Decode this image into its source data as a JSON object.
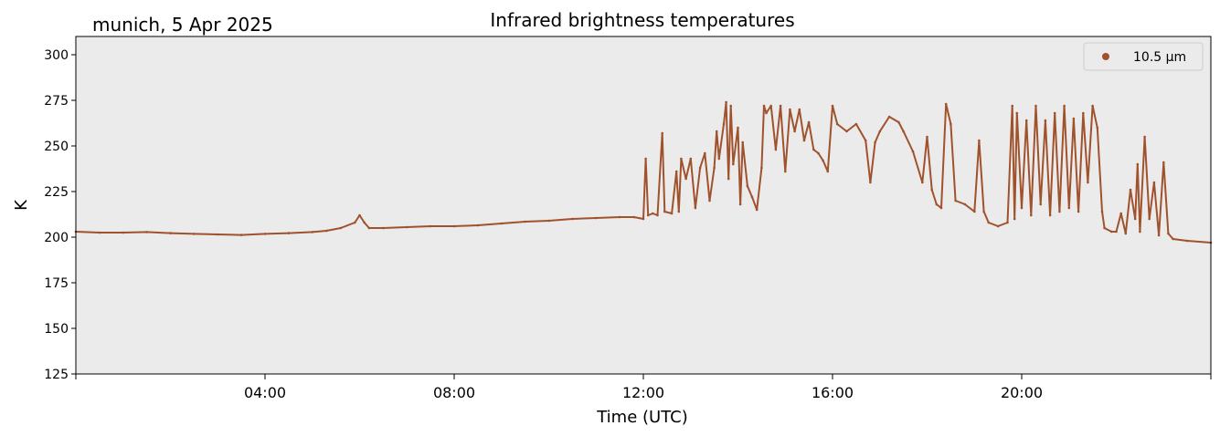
{
  "chart_data": {
    "type": "scatter",
    "title": "Infrared brightness temperatures",
    "location_label": "munich, 5 Apr 2025",
    "xlabel": "Time (UTC)",
    "ylabel": "K",
    "xlim": [
      0,
      24
    ],
    "ylim": [
      125,
      310
    ],
    "y_ticks": [
      125,
      150,
      175,
      200,
      225,
      250,
      275,
      300
    ],
    "x_ticks": [
      {
        "value": 4,
        "label": "04:00"
      },
      {
        "value": 8,
        "label": "08:00"
      },
      {
        "value": 12,
        "label": "12:00"
      },
      {
        "value": 16,
        "label": "16:00"
      },
      {
        "value": 20,
        "label": "20:00"
      }
    ],
    "grid": false,
    "legend_position": "top-right",
    "background_color": "#ebebeb",
    "series": [
      {
        "name": "10.5 µm",
        "color": "#a0522d",
        "points": [
          [
            0.0,
            203
          ],
          [
            0.5,
            202.5
          ],
          [
            1.0,
            202.5
          ],
          [
            1.5,
            202.8
          ],
          [
            2.0,
            202.2
          ],
          [
            2.5,
            201.8
          ],
          [
            3.0,
            201.5
          ],
          [
            3.5,
            201.2
          ],
          [
            4.0,
            201.8
          ],
          [
            4.5,
            202.2
          ],
          [
            5.0,
            202.8
          ],
          [
            5.3,
            203.5
          ],
          [
            5.6,
            205
          ],
          [
            5.9,
            208
          ],
          [
            6.0,
            212
          ],
          [
            6.1,
            208
          ],
          [
            6.2,
            205
          ],
          [
            6.5,
            205
          ],
          [
            7.0,
            205.5
          ],
          [
            7.5,
            206
          ],
          [
            8.0,
            206
          ],
          [
            8.5,
            206.5
          ],
          [
            9.0,
            207.5
          ],
          [
            9.5,
            208.5
          ],
          [
            10.0,
            209
          ],
          [
            10.5,
            210
          ],
          [
            11.0,
            210.5
          ],
          [
            11.5,
            211
          ],
          [
            11.8,
            211
          ],
          [
            12.0,
            210
          ],
          [
            12.05,
            243
          ],
          [
            12.1,
            212
          ],
          [
            12.2,
            213
          ],
          [
            12.3,
            212
          ],
          [
            12.4,
            257
          ],
          [
            12.45,
            214
          ],
          [
            12.6,
            213
          ],
          [
            12.7,
            236
          ],
          [
            12.75,
            214
          ],
          [
            12.8,
            243
          ],
          [
            12.9,
            232
          ],
          [
            13.0,
            243
          ],
          [
            13.1,
            216
          ],
          [
            13.2,
            238
          ],
          [
            13.3,
            246
          ],
          [
            13.4,
            220
          ],
          [
            13.5,
            238
          ],
          [
            13.55,
            258
          ],
          [
            13.6,
            243
          ],
          [
            13.7,
            262
          ],
          [
            13.75,
            274
          ],
          [
            13.8,
            232
          ],
          [
            13.85,
            272
          ],
          [
            13.9,
            240
          ],
          [
            14.0,
            260
          ],
          [
            14.05,
            218
          ],
          [
            14.1,
            252
          ],
          [
            14.2,
            228
          ],
          [
            14.3,
            222
          ],
          [
            14.4,
            215
          ],
          [
            14.5,
            238
          ],
          [
            14.55,
            272
          ],
          [
            14.6,
            268
          ],
          [
            14.7,
            272
          ],
          [
            14.8,
            248
          ],
          [
            14.9,
            272
          ],
          [
            15.0,
            236
          ],
          [
            15.1,
            270
          ],
          [
            15.2,
            258
          ],
          [
            15.3,
            270
          ],
          [
            15.4,
            253
          ],
          [
            15.5,
            263
          ],
          [
            15.6,
            248
          ],
          [
            15.7,
            246
          ],
          [
            15.8,
            242
          ],
          [
            15.9,
            236
          ],
          [
            16.0,
            272
          ],
          [
            16.1,
            262
          ],
          [
            16.3,
            258
          ],
          [
            16.5,
            262
          ],
          [
            16.7,
            253
          ],
          [
            16.8,
            230
          ],
          [
            16.9,
            252
          ],
          [
            17.0,
            258
          ],
          [
            17.2,
            266
          ],
          [
            17.4,
            263
          ],
          [
            17.5,
            258
          ],
          [
            17.7,
            247
          ],
          [
            17.9,
            230
          ],
          [
            18.0,
            255
          ],
          [
            18.1,
            226
          ],
          [
            18.2,
            218
          ],
          [
            18.3,
            216
          ],
          [
            18.4,
            273
          ],
          [
            18.5,
            262
          ],
          [
            18.6,
            220
          ],
          [
            18.8,
            218
          ],
          [
            19.0,
            214
          ],
          [
            19.1,
            253
          ],
          [
            19.2,
            214
          ],
          [
            19.3,
            208
          ],
          [
            19.5,
            206
          ],
          [
            19.7,
            208
          ],
          [
            19.8,
            272
          ],
          [
            19.85,
            210
          ],
          [
            19.9,
            268
          ],
          [
            20.0,
            216
          ],
          [
            20.1,
            264
          ],
          [
            20.2,
            212
          ],
          [
            20.3,
            272
          ],
          [
            20.4,
            218
          ],
          [
            20.5,
            264
          ],
          [
            20.6,
            212
          ],
          [
            20.7,
            268
          ],
          [
            20.8,
            214
          ],
          [
            20.9,
            272
          ],
          [
            21.0,
            216
          ],
          [
            21.1,
            265
          ],
          [
            21.2,
            214
          ],
          [
            21.3,
            268
          ],
          [
            21.4,
            230
          ],
          [
            21.5,
            272
          ],
          [
            21.6,
            260
          ],
          [
            21.7,
            214
          ],
          [
            21.75,
            205
          ],
          [
            21.9,
            203
          ],
          [
            22.0,
            203
          ],
          [
            22.1,
            213
          ],
          [
            22.2,
            202
          ],
          [
            22.3,
            226
          ],
          [
            22.4,
            210
          ],
          [
            22.45,
            240
          ],
          [
            22.5,
            203
          ],
          [
            22.6,
            255
          ],
          [
            22.7,
            210
          ],
          [
            22.8,
            230
          ],
          [
            22.9,
            201
          ],
          [
            23.0,
            241
          ],
          [
            23.1,
            202
          ],
          [
            23.2,
            199
          ],
          [
            23.5,
            198
          ],
          [
            24.0,
            197
          ]
        ]
      }
    ]
  }
}
